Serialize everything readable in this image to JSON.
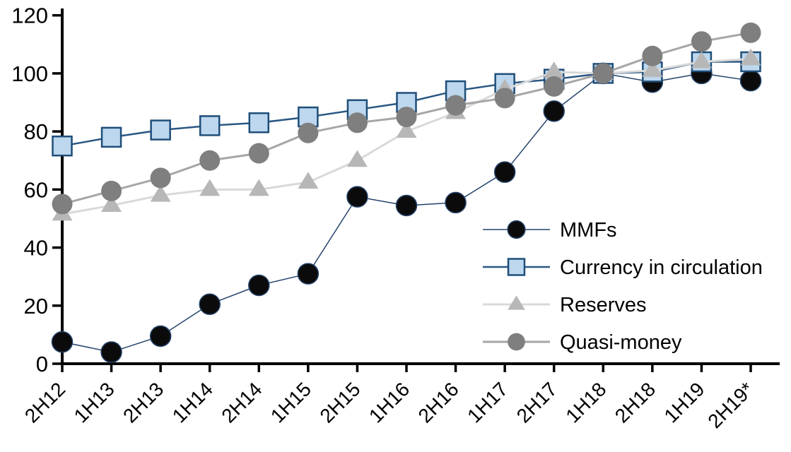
{
  "chart_data": {
    "type": "line",
    "title": "",
    "xlabel": "",
    "ylabel": "",
    "categories": [
      "2H12",
      "1H13",
      "2H13",
      "1H14",
      "2H14",
      "1H15",
      "2H15",
      "1H16",
      "2H16",
      "1H17",
      "2H17",
      "1H18",
      "2H18",
      "1H19",
      "2H19*"
    ],
    "ylim": [
      0,
      120
    ],
    "yticks": [
      0,
      20,
      40,
      60,
      80,
      100,
      120
    ],
    "ytick_labels": [
      "0",
      "20",
      "40",
      "60",
      "80",
      "100",
      "120"
    ],
    "grid": false,
    "legend_position": "inside-right",
    "axis_color": "#000000",
    "series": [
      {
        "name": "MMFs",
        "marker": "circle",
        "line_color": "#24436b",
        "line_width": 1.5,
        "marker_fill": "#0b0b0b",
        "marker_stroke": "#24436b",
        "marker_stroke_width": 1.5,
        "marker_size": 29,
        "values": [
          7.5,
          4,
          9.5,
          20.5,
          27,
          31,
          57.5,
          54.5,
          55.5,
          66,
          87,
          100,
          97,
          100,
          97.5
        ]
      },
      {
        "name": "Currency in circulation",
        "marker": "square",
        "line_color": "#2a5783",
        "line_width": 2.5,
        "marker_fill": "#bdd7ee",
        "marker_stroke": "#1f4e79",
        "marker_stroke_width": 2.5,
        "marker_size": 27,
        "values": [
          75,
          78,
          80.5,
          82,
          83,
          85,
          87.5,
          90,
          94,
          96.5,
          98,
          100,
          100.5,
          104,
          104
        ]
      },
      {
        "name": "Reserves",
        "marker": "triangle",
        "line_color": "#d9d9d9",
        "line_width": 3,
        "marker_fill": "#b7b7b7",
        "marker_stroke": "none",
        "marker_stroke_width": 0,
        "marker_size": 29,
        "values": [
          51.5,
          54.5,
          58,
          60,
          60,
          62.5,
          70,
          80,
          86.5,
          94.5,
          100.5,
          100,
          101,
          104,
          105
        ]
      },
      {
        "name": "Quasi-money",
        "marker": "circle",
        "line_color": "#a6a6a6",
        "line_width": 3,
        "marker_fill": "#7f7f7f",
        "marker_stroke": "none",
        "marker_stroke_width": 0,
        "marker_size": 29,
        "values": [
          55,
          59.5,
          64,
          70,
          72.5,
          79.5,
          83,
          85,
          89,
          91.5,
          95.5,
          100,
          106,
          111,
          114
        ]
      }
    ]
  }
}
